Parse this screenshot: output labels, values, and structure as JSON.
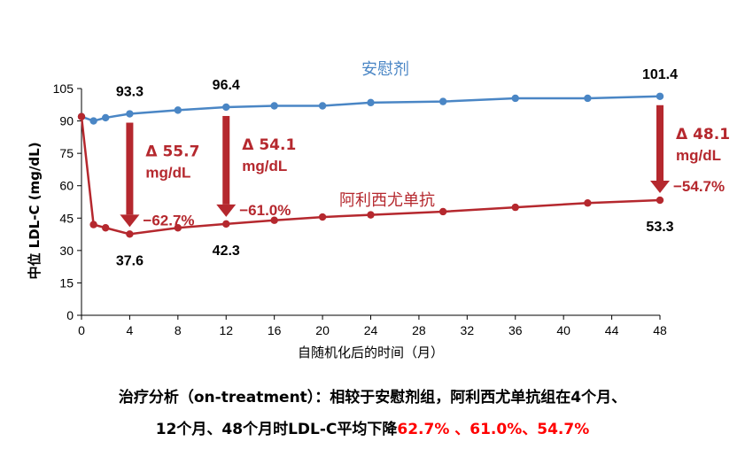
{
  "chart_data": {
    "type": "line",
    "xlabel": "自随机化后的时间（月）",
    "ylabel": "中位 LDL-C (mg/dL)",
    "xlim": [
      0,
      48
    ],
    "ylim": [
      0,
      105
    ],
    "xticks": [
      "0",
      "4",
      "8",
      "12",
      "16",
      "20",
      "24",
      "28",
      "32",
      "36",
      "40",
      "44",
      "48"
    ],
    "yticks": [
      "0",
      "15",
      "30",
      "45",
      "60",
      "75",
      "90",
      "105"
    ],
    "grid": false,
    "series": [
      {
        "name": "安慰剂",
        "color": "#4A86C5",
        "x": [
          0,
          1,
          2,
          4,
          8,
          12,
          16,
          20,
          24,
          30,
          36,
          42,
          48
        ],
        "y": [
          92,
          90,
          91.5,
          93.3,
          95,
          96.4,
          97,
          97,
          98.5,
          99,
          100.5,
          100.5,
          101.4
        ]
      },
      {
        "name": "阿利西尤单抗",
        "color": "#B5282E",
        "x": [
          0,
          1,
          2,
          4,
          8,
          12,
          16,
          20,
          24,
          30,
          36,
          42,
          48
        ],
        "y": [
          92,
          42,
          40.5,
          37.6,
          40.5,
          42.3,
          44,
          45.5,
          46.5,
          48,
          50,
          52,
          53.3
        ]
      }
    ],
    "data_labels": [
      {
        "text": "93.3",
        "x": 4,
        "series": 0
      },
      {
        "text": "96.4",
        "x": 12,
        "series": 0
      },
      {
        "text": "101.4",
        "x": 48,
        "series": 0
      },
      {
        "text": "37.6",
        "x": 4,
        "series": 1
      },
      {
        "text": "42.3",
        "x": 12,
        "series": 1
      },
      {
        "text": "53.3",
        "x": 48,
        "series": 1
      }
    ],
    "annotations": [
      {
        "x": 4,
        "delta": "Δ 55.7",
        "unit": "mg/dL",
        "pct": "−62.7%"
      },
      {
        "x": 12,
        "delta": "Δ 54.1",
        "unit": "mg/dL",
        "pct": "−61.0%"
      },
      {
        "x": 48,
        "delta": "Δ 48.1",
        "unit": "mg/dL",
        "pct": "−54.7%"
      }
    ],
    "arrow_color": "#B5282E"
  },
  "caption": {
    "line1": "治疗分析（on-treatment）：相较于安慰剂组，阿利西尤单抗组在4个月、",
    "line2_prefix": "12个月、48个月时LDL-C平均下降",
    "line2_highlight": "62.7% 、61.0%、54.7%",
    "highlight_color": "#FF0000"
  }
}
